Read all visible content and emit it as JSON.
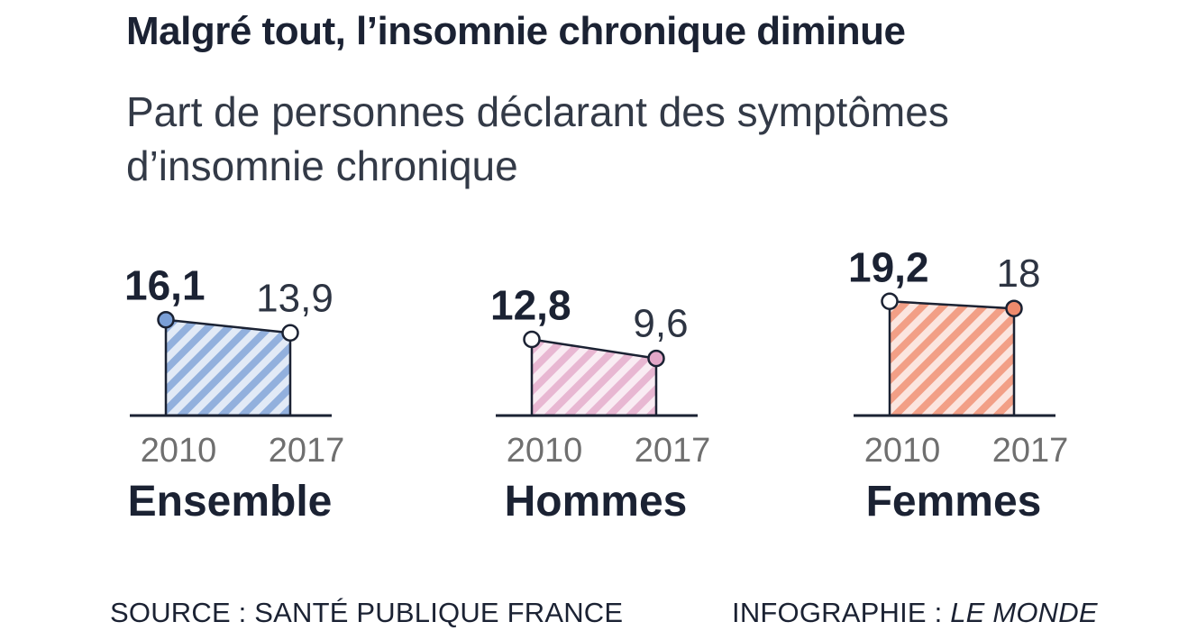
{
  "title": "Malgré tout, l’insomnie chronique diminue",
  "subtitle": "Part de personnes déclarant des symptômes d’insomnie chronique",
  "chart_data": {
    "type": "area",
    "title": "Malgré tout, l’insomnie chronique diminue",
    "subtitle": "Part de personnes déclarant des symptômes d’insomnie chronique",
    "x": [
      "2010",
      "2017"
    ],
    "panels": [
      {
        "name": "Ensemble",
        "values": [
          16.1,
          13.9
        ],
        "labels": [
          "16,1",
          "13,9"
        ],
        "color": "#7a9fd6",
        "highlight": 0
      },
      {
        "name": "Hommes",
        "values": [
          12.8,
          9.6
        ],
        "labels": [
          "12,8",
          "9,6"
        ],
        "color": "#e3a7c8",
        "highlight": 1
      },
      {
        "name": "Femmes",
        "values": [
          19.2,
          18.0
        ],
        "labels": [
          "19,2",
          "18"
        ],
        "color": "#ef8a6c",
        "highlight": 1
      }
    ]
  },
  "footer": {
    "source": "SOURCE : SANTÉ PUBLIQUE FRANCE",
    "credit_prefix": "INFOGRAPHIE : ",
    "credit_brand": "LE MONDE"
  }
}
